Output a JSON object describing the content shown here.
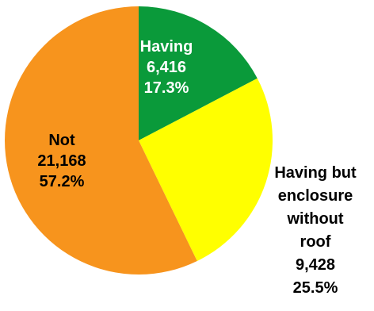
{
  "chart_data": {
    "type": "pie",
    "slices": [
      {
        "label": "Having",
        "value": 6416,
        "value_text": "6,416",
        "percent_text": "17.3%",
        "color": "#0a9a3a",
        "label_color": "#ffffff"
      },
      {
        "label": "Having but enclosure without roof",
        "label_lines": [
          "Having but",
          "enclosure",
          "without",
          "roof"
        ],
        "value": 9428,
        "value_text": "9,428",
        "percent_text": "25.5%",
        "color": "#ffff00",
        "label_color": "#000000"
      },
      {
        "label": "Not",
        "value": 21168,
        "value_text": "21,168",
        "percent_text": "57.2%",
        "color": "#f7941d",
        "label_color": "#000000"
      }
    ],
    "start_angle": "12 o'clock",
    "direction": "clockwise"
  }
}
